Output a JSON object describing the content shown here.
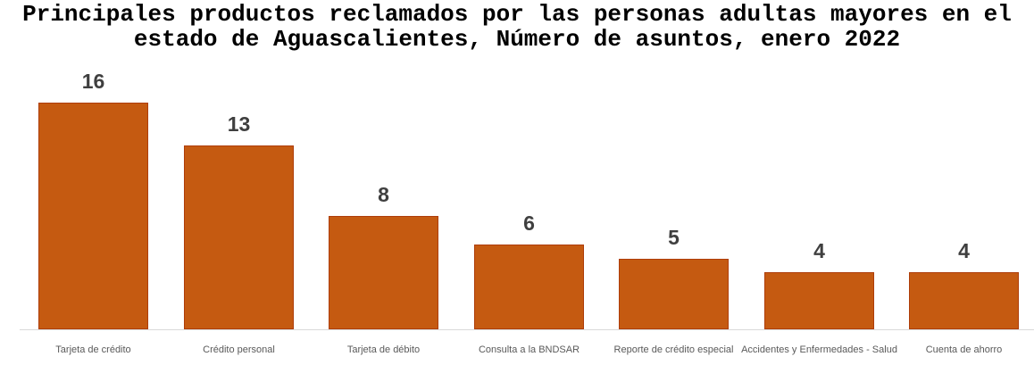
{
  "chart_data": {
    "type": "bar",
    "title": "Principales productos reclamados por las personas adultas mayores en el estado de Aguascalientes, Número de asuntos, enero 2022",
    "title_lines": [
      "Principales productos reclamados por las personas adultas mayores en el",
      "estado de Aguascalientes, Número de asuntos, enero 2022"
    ],
    "categories": [
      "Tarjeta de crédito",
      "Crédito personal",
      "Tarjeta de débito",
      "Consulta a la BNDSAR",
      "Reporte de crédito especial",
      "Accidentes y Enfermedades - Salud",
      "Cuenta de ahorro"
    ],
    "values": [
      16,
      13,
      8,
      6,
      5,
      4,
      4
    ],
    "xlabel": "",
    "ylabel": "",
    "ylim": [
      0,
      16
    ],
    "grid": false,
    "legend": false,
    "data_labels": true,
    "colors": {
      "background": "#ffffff",
      "bar_fill": "#c55a11",
      "bar_border": "#ae3d0a",
      "value_label": "#3f3f3f",
      "category_label": "#595959",
      "axis_line": "#d9d9d9",
      "title": "#000000"
    }
  }
}
